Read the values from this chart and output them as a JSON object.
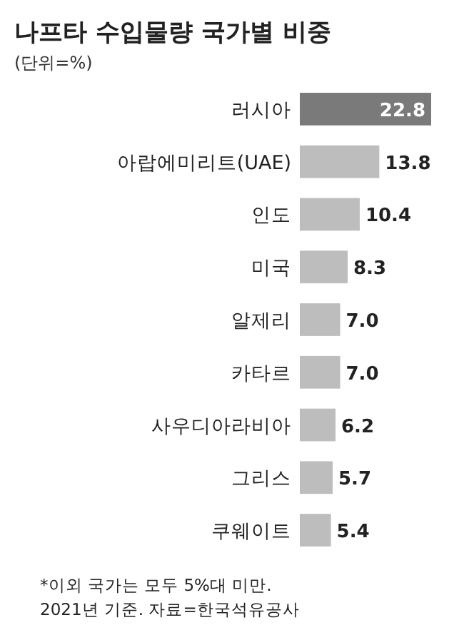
{
  "chart_data": {
    "type": "bar",
    "orientation": "horizontal",
    "title": "나프타 수입물량 국가별 비중",
    "subtitle": "(단위=%)",
    "categories": [
      "러시아",
      "아랍에미리트(UAE)",
      "인도",
      "미국",
      "알제리",
      "카타르",
      "사우디아라비아",
      "그리스",
      "쿠웨이트"
    ],
    "values": [
      22.8,
      13.8,
      10.4,
      8.3,
      7.0,
      7.0,
      6.2,
      5.7,
      5.4
    ],
    "colors": [
      "#7a7a7a",
      "#bdbdbd",
      "#bdbdbd",
      "#bdbdbd",
      "#bdbdbd",
      "#bdbdbd",
      "#bdbdbd",
      "#bdbdbd",
      "#bdbdbd"
    ],
    "value_labels": [
      "22.8",
      "13.8",
      "10.4",
      "8.3",
      "7.0",
      "7.0",
      "6.2",
      "5.7",
      "5.4"
    ],
    "annotations": [
      "*이외 국가는 모두 5%대 미만.",
      "2021년 기준. 자료=한국석유공사"
    ]
  }
}
